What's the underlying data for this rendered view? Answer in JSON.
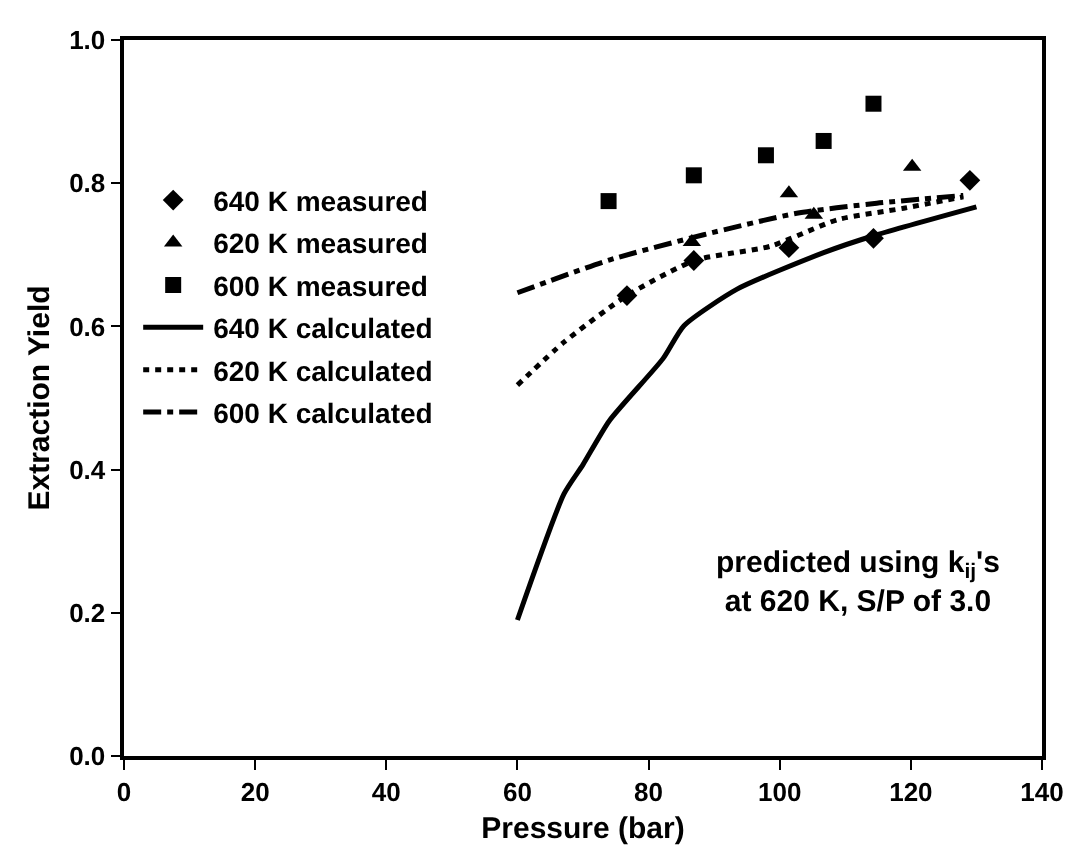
{
  "chart_data": {
    "type": "scatter",
    "xlabel": "Pressure (bar)",
    "ylabel": "Extraction Yield",
    "xlim": [
      0,
      140
    ],
    "xticks": [
      0,
      20,
      40,
      60,
      80,
      100,
      120,
      140
    ],
    "ylim": [
      0,
      1
    ],
    "yticks": [
      {
        "value": 0,
        "label": "0.0"
      },
      {
        "value": 0.2,
        "label": "0.2"
      },
      {
        "value": 0.4,
        "label": "0.4"
      },
      {
        "value": 0.6,
        "label": "0.6"
      },
      {
        "value": 0.8,
        "label": "0.8"
      },
      {
        "value": 1,
        "label": "1.0"
      }
    ],
    "grid": false,
    "legend": "left",
    "annotations": [
      "predicted using k$_{ij}$'s\nat 620 K, S/P of 3.0"
    ],
    "series": [
      {
        "name": "640 K measured",
        "marker": "diamond",
        "color": "#000000",
        "x": [
          76.7,
          86.9,
          101.4,
          114.3,
          129
        ],
        "values": [
          0.643,
          0.692,
          0.71,
          0.723,
          0.804
        ]
      },
      {
        "name": "620 K measured",
        "marker": "triangle",
        "color": "#000000",
        "x": [
          86.6,
          101.4,
          105.2,
          120.2
        ],
        "values": [
          0.718,
          0.786,
          0.756,
          0.823
        ]
      },
      {
        "name": "600 K measured",
        "marker": "square",
        "color": "#000000",
        "x": [
          73.9,
          86.9,
          97.9,
          106.7,
          114.3
        ],
        "values": [
          0.775,
          0.811,
          0.839,
          0.859,
          0.911
        ]
      },
      {
        "name": "640 K calculated",
        "type": "line",
        "line_style": "solid",
        "color": "#000000",
        "x": [
          60,
          67.1,
          70,
          74,
          82.2,
          85.4,
          93.5,
          106.7,
          114.8,
          130
        ],
        "values": [
          0.19,
          0.366,
          0.407,
          0.468,
          0.555,
          0.601,
          0.652,
          0.703,
          0.728,
          0.767
        ]
      },
      {
        "name": "620 K calculated",
        "type": "line",
        "line_style": "dotted",
        "color": "#000000",
        "x": [
          60,
          67.1,
          76.7,
          87,
          98.6,
          108.8,
          118.9,
          128
        ],
        "values": [
          0.518,
          0.578,
          0.643,
          0.692,
          0.712,
          0.749,
          0.765,
          0.781
        ]
      },
      {
        "name": "600 K calculated",
        "type": "line",
        "line_style": "dashdot",
        "color": "#000000",
        "x": [
          60,
          74.1,
          88.4,
          102.6,
          114.8,
          128
        ],
        "values": [
          0.647,
          0.693,
          0.728,
          0.758,
          0.772,
          0.783
        ]
      }
    ]
  }
}
